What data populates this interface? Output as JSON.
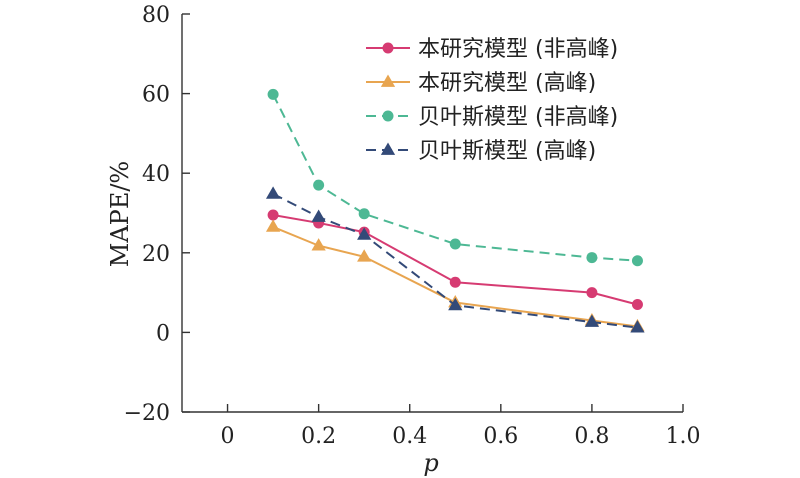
{
  "chart_data": {
    "type": "line",
    "xlabel": "p",
    "ylabel": "MAPE/%",
    "xlim": [
      -0.1,
      1.0
    ],
    "ylim": [
      -20,
      80
    ],
    "xticks": [
      0,
      0.2,
      0.4,
      0.6,
      0.8,
      1.0
    ],
    "xtick_labels": [
      "0",
      "0.2",
      "0.4",
      "0.6",
      "0.8",
      "1.0"
    ],
    "yticks": [
      -20,
      0,
      20,
      40,
      60,
      80
    ],
    "ytick_labels": [
      "−20",
      "0",
      "20",
      "40",
      "60",
      "80"
    ],
    "grid": false,
    "legend_position": "top-right",
    "x": [
      0.1,
      0.2,
      0.3,
      0.5,
      0.8,
      0.9
    ],
    "series": [
      {
        "name": "本研究模型 (非高峰)",
        "values": [
          29.5,
          27.5,
          25.2,
          12.6,
          10.0,
          7.0
        ],
        "color": "#d63b72",
        "marker": "circle",
        "dash": "solid"
      },
      {
        "name": "本研究模型 (高峰)",
        "values": [
          26.5,
          21.8,
          19.0,
          7.5,
          3.0,
          1.5
        ],
        "color": "#e8a550",
        "marker": "triangle",
        "dash": "solid"
      },
      {
        "name": "贝叶斯模型 (非高峰)",
        "values": [
          59.8,
          37.0,
          29.8,
          22.2,
          18.8,
          18.0
        ],
        "color": "#4db894",
        "marker": "circle",
        "dash": "dashed"
      },
      {
        "name": "贝叶斯模型 (高峰)",
        "values": [
          34.8,
          29.0,
          24.5,
          6.8,
          2.6,
          1.2
        ],
        "color": "#334a78",
        "marker": "triangle",
        "dash": "dashed"
      }
    ]
  }
}
